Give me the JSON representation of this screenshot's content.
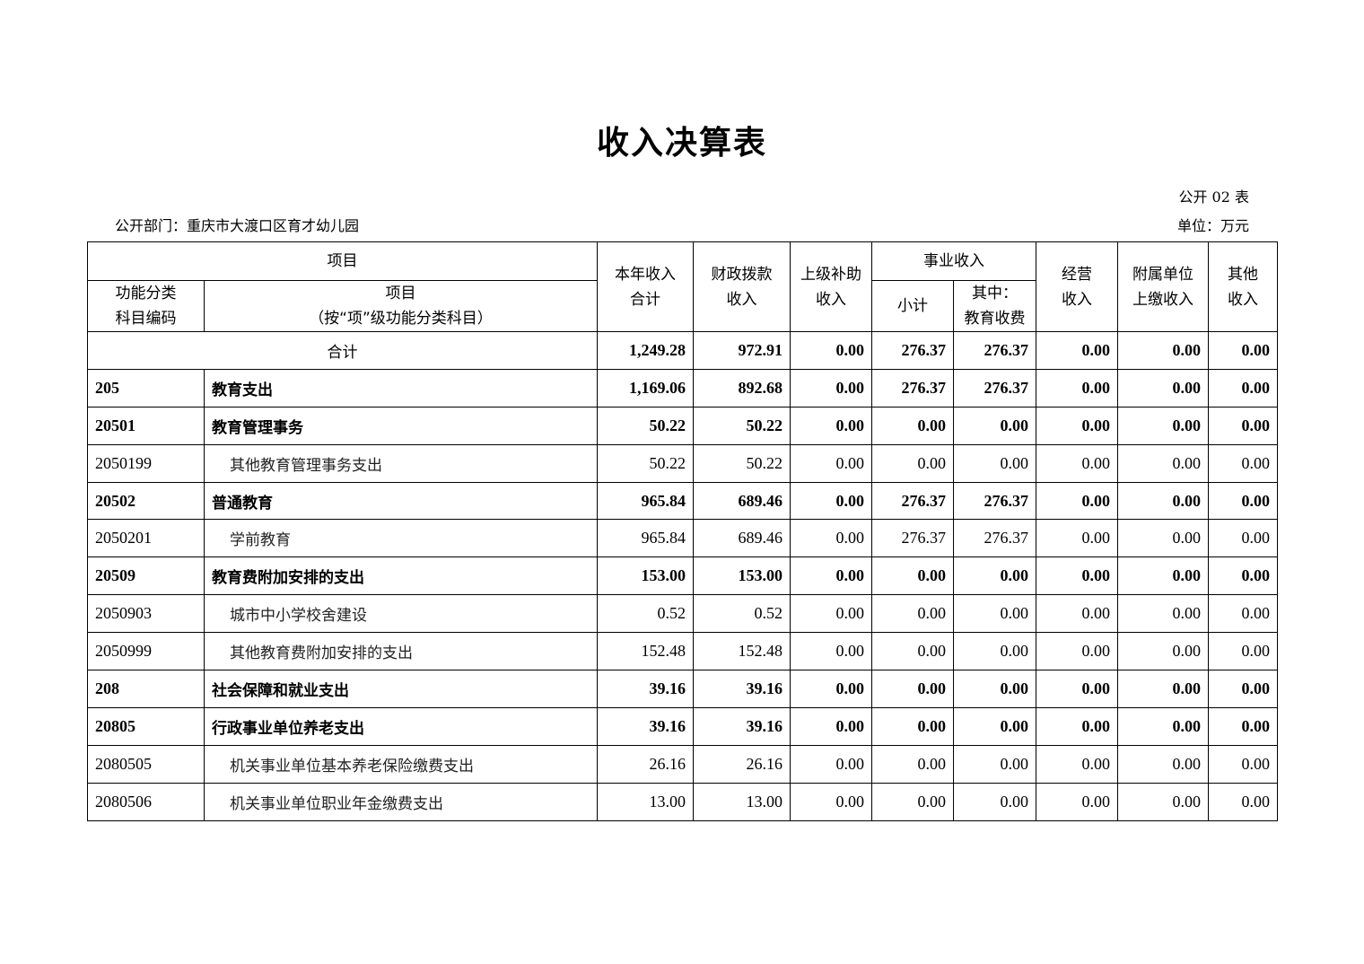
{
  "title": "收入决算表",
  "table_no": "公开 02 表",
  "department": "公开部门：重庆市大渡口区育才幼儿园",
  "unit": "单位：万元",
  "headers": {
    "project": "项目",
    "code": "功能分类\n科目编码",
    "item": "项目",
    "item_sub": "（按“项”级功能分类科目）",
    "total_income": "本年收入\n合计",
    "fiscal": "财政拨款\n收入",
    "superior": "上级补助\n收入",
    "business": "事业收入",
    "subtotal": "小计",
    "edu_fee": "其中：\n教育收费",
    "operating": "经营\n收入",
    "affiliated": "附属单位\n上缴收入",
    "other": "其他\n收入"
  },
  "total_row": {
    "label": "合计",
    "values": [
      "1,249.28",
      "972.91",
      "0.00",
      "276.37",
      "276.37",
      "0.00",
      "0.00",
      "0.00"
    ]
  },
  "rows": [
    {
      "code": "205",
      "name": "教育支出",
      "bold": true,
      "values": [
        "1,169.06",
        "892.68",
        "0.00",
        "276.37",
        "276.37",
        "0.00",
        "0.00",
        "0.00"
      ]
    },
    {
      "code": "20501",
      "name": "教育管理事务",
      "bold": true,
      "values": [
        "50.22",
        "50.22",
        "0.00",
        "0.00",
        "0.00",
        "0.00",
        "0.00",
        "0.00"
      ]
    },
    {
      "code": "2050199",
      "name": "其他教育管理事务支出",
      "bold": false,
      "values": [
        "50.22",
        "50.22",
        "0.00",
        "0.00",
        "0.00",
        "0.00",
        "0.00",
        "0.00"
      ]
    },
    {
      "code": "20502",
      "name": "普通教育",
      "bold": true,
      "values": [
        "965.84",
        "689.46",
        "0.00",
        "276.37",
        "276.37",
        "0.00",
        "0.00",
        "0.00"
      ]
    },
    {
      "code": "2050201",
      "name": "学前教育",
      "bold": false,
      "values": [
        "965.84",
        "689.46",
        "0.00",
        "276.37",
        "276.37",
        "0.00",
        "0.00",
        "0.00"
      ]
    },
    {
      "code": "20509",
      "name": "教育费附加安排的支出",
      "bold": true,
      "values": [
        "153.00",
        "153.00",
        "0.00",
        "0.00",
        "0.00",
        "0.00",
        "0.00",
        "0.00"
      ]
    },
    {
      "code": "2050903",
      "name": "城市中小学校舍建设",
      "bold": false,
      "values": [
        "0.52",
        "0.52",
        "0.00",
        "0.00",
        "0.00",
        "0.00",
        "0.00",
        "0.00"
      ]
    },
    {
      "code": "2050999",
      "name": "其他教育费附加安排的支出",
      "bold": false,
      "values": [
        "152.48",
        "152.48",
        "0.00",
        "0.00",
        "0.00",
        "0.00",
        "0.00",
        "0.00"
      ]
    },
    {
      "code": "208",
      "name": "社会保障和就业支出",
      "bold": true,
      "values": [
        "39.16",
        "39.16",
        "0.00",
        "0.00",
        "0.00",
        "0.00",
        "0.00",
        "0.00"
      ]
    },
    {
      "code": "20805",
      "name": "行政事业单位养老支出",
      "bold": true,
      "values": [
        "39.16",
        "39.16",
        "0.00",
        "0.00",
        "0.00",
        "0.00",
        "0.00",
        "0.00"
      ]
    },
    {
      "code": "2080505",
      "name": "机关事业单位基本养老保险缴费支出",
      "bold": false,
      "values": [
        "26.16",
        "26.16",
        "0.00",
        "0.00",
        "0.00",
        "0.00",
        "0.00",
        "0.00"
      ]
    },
    {
      "code": "2080506",
      "name": "机关事业单位职业年金缴费支出",
      "bold": false,
      "values": [
        "13.00",
        "13.00",
        "0.00",
        "0.00",
        "0.00",
        "0.00",
        "0.00",
        "0.00"
      ]
    }
  ]
}
